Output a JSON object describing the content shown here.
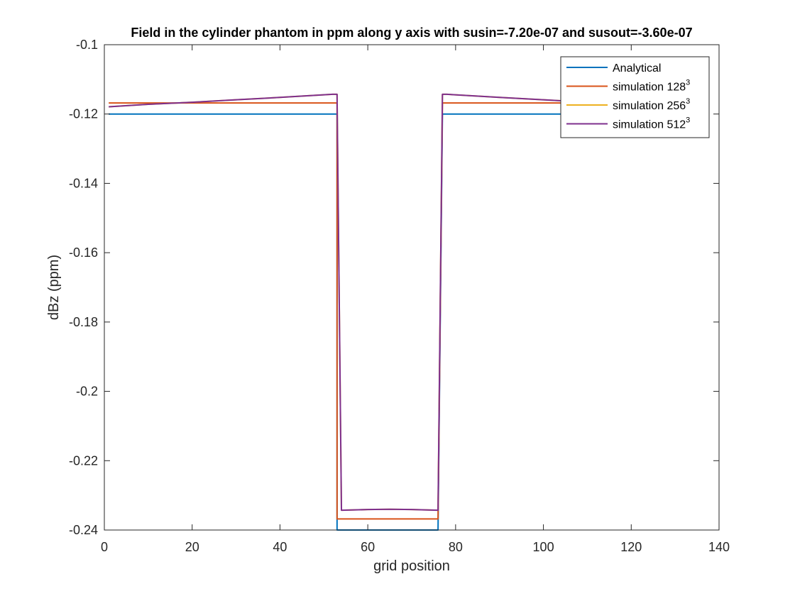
{
  "chart_data": {
    "type": "line",
    "title": "Field in the cylinder phantom in ppm along y axis with susin=-7.20e-07 and susout=-3.60e-07",
    "xlabel": "grid position",
    "ylabel": "dBz (ppm)",
    "xlim": [
      0,
      140
    ],
    "ylim": [
      -0.24,
      -0.1
    ],
    "xticks": [
      0,
      20,
      40,
      60,
      80,
      100,
      120,
      140
    ],
    "yticks": [
      -0.24,
      -0.22,
      -0.2,
      -0.18,
      -0.16,
      -0.14,
      -0.12,
      -0.1
    ],
    "xtick_labels": [
      "0",
      "20",
      "40",
      "60",
      "80",
      "100",
      "120",
      "140"
    ],
    "ytick_labels": [
      "-0.24",
      "-0.22",
      "-0.2",
      "-0.18",
      "-0.16",
      "-0.14",
      "-0.12",
      "-0.1"
    ],
    "grid": false,
    "box": true,
    "legend_position": "top-right",
    "series": [
      {
        "name": "Analytical",
        "name_superscript": "",
        "color": "#0072BD",
        "x": [
          1,
          52,
          52,
          53,
          53,
          76,
          76,
          77,
          77,
          128
        ],
        "y": [
          -0.12,
          -0.12,
          -0.12,
          -0.12,
          -0.24,
          -0.24,
          -0.24,
          -0.12,
          -0.12,
          -0.12
        ]
      },
      {
        "name": "simulation 128",
        "name_superscript": "3",
        "color": "#D95319",
        "x": [
          1,
          52,
          53,
          53,
          76,
          77,
          128
        ],
        "y": [
          -0.1168,
          -0.1168,
          -0.1168,
          -0.2368,
          -0.2368,
          -0.1168,
          -0.1168
        ]
      },
      {
        "name": "simulation 256",
        "name_superscript": "3",
        "color": "#EDB120",
        "x": [
          1,
          10,
          20,
          30,
          40,
          52,
          53,
          54,
          60,
          65,
          70,
          76,
          77,
          78,
          90,
          100,
          110,
          120,
          128
        ],
        "y": [
          -0.1179,
          -0.1172,
          -0.1166,
          -0.1159,
          -0.1152,
          -0.1143,
          -0.1143,
          -0.2343,
          -0.2341,
          -0.234,
          -0.2341,
          -0.2343,
          -0.1143,
          -0.1143,
          -0.1152,
          -0.1159,
          -0.1166,
          -0.1172,
          -0.1179
        ]
      },
      {
        "name": "simulation 512",
        "name_superscript": "3",
        "color": "#7E2F8E",
        "x": [
          1,
          10,
          20,
          30,
          40,
          52,
          53,
          54,
          60,
          65,
          70,
          76,
          77,
          78,
          90,
          100,
          110,
          120,
          128
        ],
        "y": [
          -0.1179,
          -0.1172,
          -0.1166,
          -0.1159,
          -0.1152,
          -0.1143,
          -0.1143,
          -0.2343,
          -0.2341,
          -0.234,
          -0.2341,
          -0.2343,
          -0.1143,
          -0.1143,
          -0.1152,
          -0.1159,
          -0.1166,
          -0.1172,
          -0.1179
        ]
      }
    ]
  }
}
